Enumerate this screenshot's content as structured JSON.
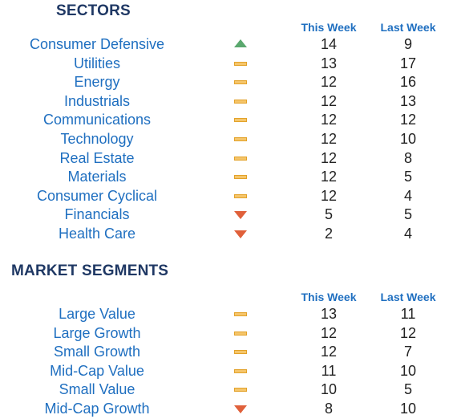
{
  "sectors": {
    "title": "SECTORS",
    "col_this_week": "This Week",
    "col_last_week": "Last Week",
    "rows": [
      {
        "name": "Consumer Defensive",
        "trend": "up",
        "this_week": "14",
        "last_week": "9"
      },
      {
        "name": "Utilities",
        "trend": "flat",
        "this_week": "13",
        "last_week": "17"
      },
      {
        "name": "Energy",
        "trend": "flat",
        "this_week": "12",
        "last_week": "16"
      },
      {
        "name": "Industrials",
        "trend": "flat",
        "this_week": "12",
        "last_week": "13"
      },
      {
        "name": "Communications",
        "trend": "flat",
        "this_week": "12",
        "last_week": "12"
      },
      {
        "name": "Technology",
        "trend": "flat",
        "this_week": "12",
        "last_week": "10"
      },
      {
        "name": "Real Estate",
        "trend": "flat",
        "this_week": "12",
        "last_week": "8"
      },
      {
        "name": "Materials",
        "trend": "flat",
        "this_week": "12",
        "last_week": "5"
      },
      {
        "name": "Consumer Cyclical",
        "trend": "flat",
        "this_week": "12",
        "last_week": "4"
      },
      {
        "name": "Financials",
        "trend": "down",
        "this_week": "5",
        "last_week": "5"
      },
      {
        "name": "Health Care",
        "trend": "down",
        "this_week": "2",
        "last_week": "4"
      }
    ]
  },
  "segments": {
    "title": "MARKET SEGMENTS",
    "col_this_week": "This Week",
    "col_last_week": "Last Week",
    "rows": [
      {
        "name": "Large Value",
        "trend": "flat",
        "this_week": "13",
        "last_week": "11"
      },
      {
        "name": "Large Growth",
        "trend": "flat",
        "this_week": "12",
        "last_week": "12"
      },
      {
        "name": "Small Growth",
        "trend": "flat",
        "this_week": "12",
        "last_week": "7"
      },
      {
        "name": "Mid-Cap Value",
        "trend": "flat",
        "this_week": "11",
        "last_week": "10"
      },
      {
        "name": "Small Value",
        "trend": "flat",
        "this_week": "10",
        "last_week": "5"
      },
      {
        "name": "Mid-Cap Growth",
        "trend": "down",
        "this_week": "8",
        "last_week": "10"
      }
    ]
  },
  "colors": {
    "title": "#1f3864",
    "label": "#1f6fc0",
    "up": "#5aa86e",
    "flat": "#f5c56a",
    "down": "#e0603a"
  },
  "icons": {
    "up": "triangle-up-icon",
    "flat": "flat-dash-icon",
    "down": "triangle-down-icon"
  }
}
